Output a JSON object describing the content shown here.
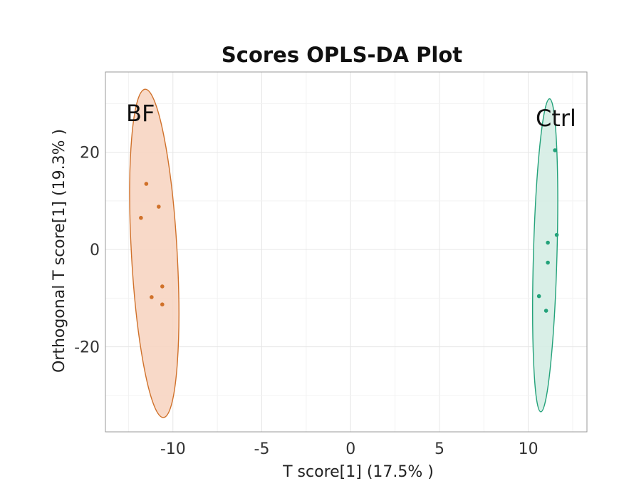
{
  "chart_data": {
    "type": "scatter",
    "title": "Scores OPLS-DA Plot",
    "xlabel": "T score[1] (17.5% )",
    "ylabel": "Orthogonal T score[1] (19.3% )",
    "xlim": [
      -13.8,
      13.3
    ],
    "ylim": [
      -37.5,
      36.5
    ],
    "x_ticks": [
      -10,
      -5,
      0,
      5,
      10
    ],
    "x_tick_labels": [
      "-10",
      "-5",
      "0",
      "5",
      "10"
    ],
    "y_ticks": [
      -20,
      0,
      20
    ],
    "y_tick_labels": [
      "-20",
      "0",
      "20"
    ],
    "grid": true,
    "series": [
      {
        "name": "BF",
        "color": "#d0712a",
        "fill": "#f7d5c2",
        "points": [
          {
            "x": -11.5,
            "y": 13.5
          },
          {
            "x": -10.8,
            "y": 8.8
          },
          {
            "x": -11.8,
            "y": 6.5
          },
          {
            "x": -10.6,
            "y": -7.6
          },
          {
            "x": -11.2,
            "y": -9.8
          },
          {
            "x": -10.6,
            "y": -11.3
          }
        ],
        "ellipse": {
          "cx": -11.05,
          "cy": -0.8,
          "top": 33.0,
          "bottom": -34.6,
          "left": -12.7,
          "right": -9.4
        }
      },
      {
        "name": "Ctrl",
        "color": "#23a27a",
        "fill": "#d5ede4",
        "points": [
          {
            "x": 11.5,
            "y": 20.4
          },
          {
            "x": 11.6,
            "y": 3.0
          },
          {
            "x": 11.1,
            "y": 1.4
          },
          {
            "x": 11.1,
            "y": -2.7
          },
          {
            "x": 10.6,
            "y": -9.6
          },
          {
            "x": 11.0,
            "y": -12.6
          }
        ],
        "ellipse": {
          "cx": 10.95,
          "cy": -1.2,
          "top": 31.0,
          "bottom": -33.4,
          "left": 10.2,
          "right": 11.9
        }
      }
    ]
  }
}
